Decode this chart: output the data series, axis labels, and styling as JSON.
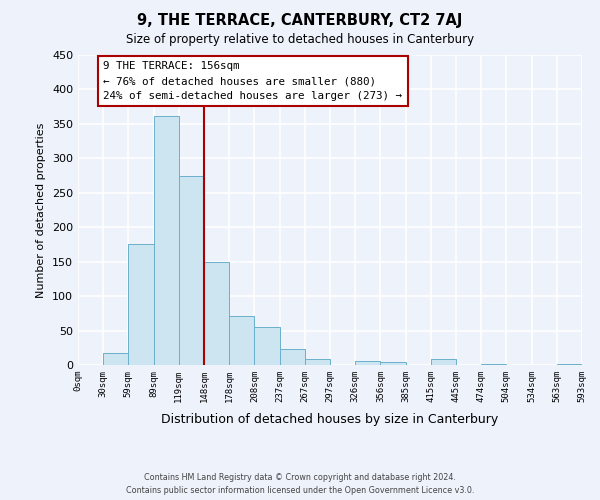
{
  "title": "9, THE TERRACE, CANTERBURY, CT2 7AJ",
  "subtitle": "Size of property relative to detached houses in Canterbury",
  "xlabel": "Distribution of detached houses by size in Canterbury",
  "ylabel": "Number of detached properties",
  "bin_labels": [
    "0sqm",
    "30sqm",
    "59sqm",
    "89sqm",
    "119sqm",
    "148sqm",
    "178sqm",
    "208sqm",
    "237sqm",
    "267sqm",
    "297sqm",
    "326sqm",
    "356sqm",
    "385sqm",
    "415sqm",
    "445sqm",
    "474sqm",
    "504sqm",
    "534sqm",
    "563sqm",
    "593sqm"
  ],
  "bar_values": [
    0,
    18,
    176,
    362,
    275,
    150,
    71,
    55,
    23,
    9,
    0,
    6,
    5,
    0,
    8,
    0,
    1,
    0,
    0,
    1
  ],
  "bar_color": "#cce5f0",
  "bar_edge_color": "#6ab0cc",
  "vline_color": "#aa0000",
  "annotation_title": "9 THE TERRACE: 156sqm",
  "annotation_line1": "← 76% of detached houses are smaller (880)",
  "annotation_line2": "24% of semi-detached houses are larger (273) →",
  "footer_line1": "Contains HM Land Registry data © Crown copyright and database right 2024.",
  "footer_line2": "Contains public sector information licensed under the Open Government Licence v3.0.",
  "ylim": [
    0,
    450
  ],
  "yticks": [
    0,
    50,
    100,
    150,
    200,
    250,
    300,
    350,
    400,
    450
  ],
  "num_bins": 20,
  "vline_bin_index": 5,
  "background_color": "#eef2fb"
}
